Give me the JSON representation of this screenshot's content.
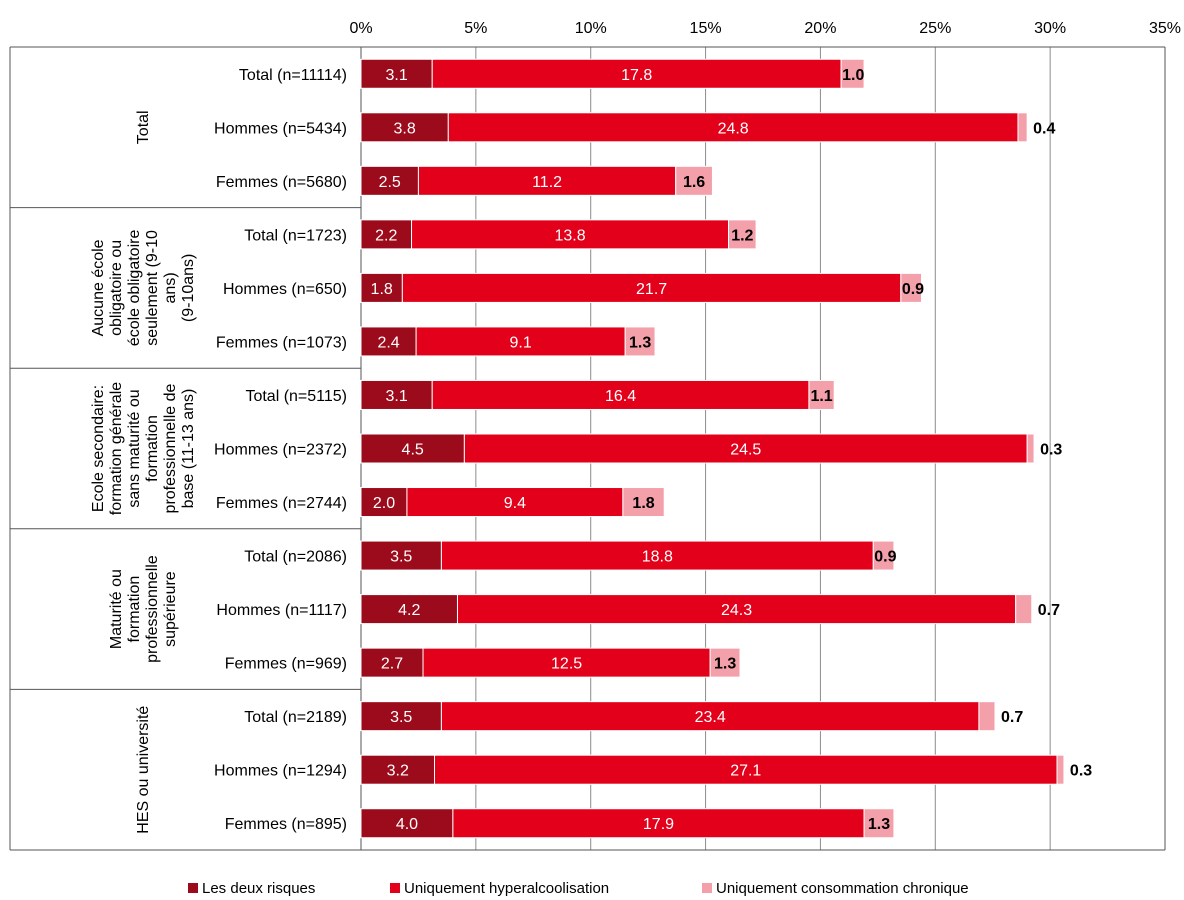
{
  "chart_data": {
    "type": "bar",
    "orientation": "horizontal",
    "stacked": true,
    "title": "",
    "xlabel": "",
    "ylabel": "",
    "xlim": [
      0,
      35
    ],
    "x_ticks": [
      "0%",
      "5%",
      "10%",
      "15%",
      "20%",
      "25%",
      "30%",
      "35%"
    ],
    "grid": "vertical",
    "legend_position": "bottom",
    "colors": {
      "both": "#9b0b1b",
      "binge": "#e2001a",
      "chronic": "#f4a0ab"
    },
    "series": [
      {
        "name": "Les deux risques",
        "key": "both"
      },
      {
        "name": "Uniquement hyperalcoolisation",
        "key": "binge"
      },
      {
        "name": "Uniquement consommation  chronique",
        "key": "chronic"
      }
    ],
    "groups": [
      {
        "label": "Total",
        "rows": [
          {
            "label": "Total  (n=11114)",
            "both": 3.1,
            "binge": 17.8,
            "chronic": 1.0
          },
          {
            "label": "Hommes (n=5434)",
            "both": 3.8,
            "binge": 24.8,
            "chronic": 0.4
          },
          {
            "label": "Femmes (n=5680)",
            "both": 2.5,
            "binge": 11.2,
            "chronic": 1.6
          }
        ]
      },
      {
        "label": "Aucune école obligatoire ou école obligatoire seulement (9-10 ans) (9-10ans)",
        "label_lines": [
          "Aucune école",
          "obligatoire ou",
          "école obligatoire",
          "seulement (9-10",
          "ans)",
          "(9-10ans)"
        ],
        "rows": [
          {
            "label": "Total  (n=1723)",
            "both": 2.2,
            "binge": 13.8,
            "chronic": 1.2
          },
          {
            "label": "Hommes (n=650)",
            "both": 1.8,
            "binge": 21.7,
            "chronic": 0.9
          },
          {
            "label": "Femmes (n=1073)",
            "both": 2.4,
            "binge": 9.1,
            "chronic": 1.3
          }
        ]
      },
      {
        "label": "Ecole secondaire: formation générale sans maturité ou formation professionnelle de base (11-13 ans)",
        "label_lines": [
          "Ecole secondaire:",
          "formation générale",
          "sans maturité ou",
          "formation",
          "professionnelle de",
          "base (11-13 ans)"
        ],
        "rows": [
          {
            "label": "Total  (n=5115)",
            "both": 3.1,
            "binge": 16.4,
            "chronic": 1.1
          },
          {
            "label": "Hommes (n=2372)",
            "both": 4.5,
            "binge": 24.5,
            "chronic": 0.3
          },
          {
            "label": "Femmes (n=2744)",
            "both": 2.0,
            "binge": 9.4,
            "chronic": 1.8
          }
        ]
      },
      {
        "label": "Maturité ou formation professionnelle supérieure",
        "label_lines": [
          "Maturité ou",
          "formation",
          "professionnelle",
          "supérieure"
        ],
        "rows": [
          {
            "label": "Total  (n=2086)",
            "both": 3.5,
            "binge": 18.8,
            "chronic": 0.9
          },
          {
            "label": "Hommes (n=1117)",
            "both": 4.2,
            "binge": 24.3,
            "chronic": 0.7
          },
          {
            "label": "Femmes (n=969)",
            "both": 2.7,
            "binge": 12.5,
            "chronic": 1.3
          }
        ]
      },
      {
        "label": "HES ou université",
        "label_lines": [
          "HES ou université"
        ],
        "rows": [
          {
            "label": "Total  (n=2189)",
            "both": 3.5,
            "binge": 23.4,
            "chronic": 0.7
          },
          {
            "label": "Hommes (n=1294)",
            "both": 3.2,
            "binge": 27.1,
            "chronic": 0.3
          },
          {
            "label": "Femmes (n=895)",
            "both": 4.0,
            "binge": 17.9,
            "chronic": 1.3
          }
        ]
      }
    ]
  }
}
